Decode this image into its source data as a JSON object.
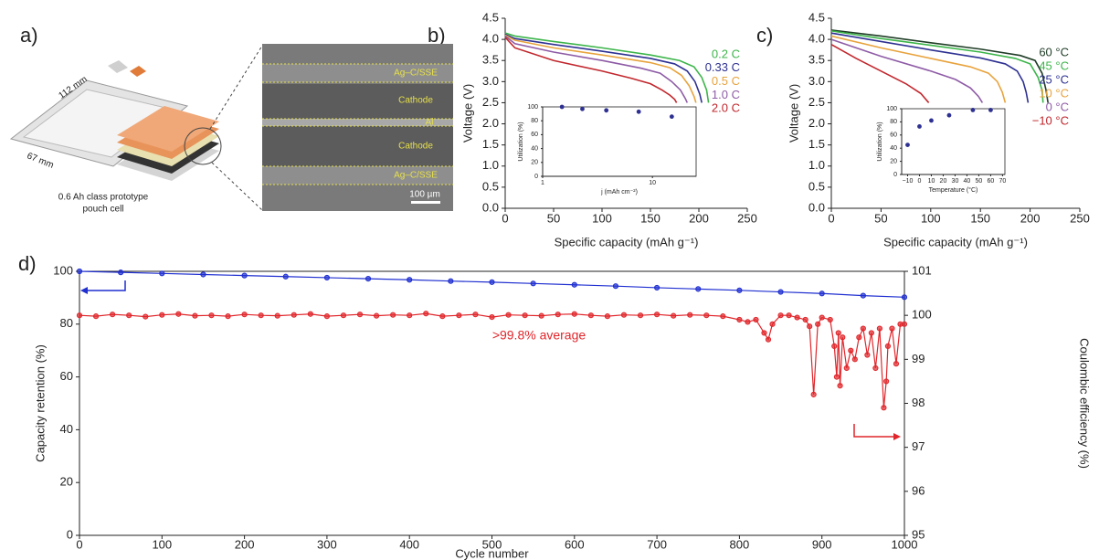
{
  "panel_labels": [
    "a)",
    "b)",
    "c)",
    "d)"
  ],
  "illustration": {
    "dimensions": [
      "112 mm",
      "67 mm"
    ],
    "caption": [
      "0.6 Ah class prototype",
      "pouch cell"
    ],
    "layers": [
      "Ag–C/SSE",
      "Cathode",
      "Al",
      "Cathode",
      "Ag–C/SSE"
    ],
    "scale_bar": "100 µm"
  },
  "chart_data": [
    {
      "type": "line",
      "xlabel": "Specific capacity (mAh g⁻¹)",
      "ylabel": "Voltage (V)",
      "xlim": [
        0,
        250
      ],
      "xticks": [
        0,
        50,
        100,
        150,
        200,
        250
      ],
      "ylim": [
        0,
        4.5
      ],
      "yticks": [
        {
          "value": 0,
          "label": "0.0"
        },
        0.5,
        {
          "value": 1,
          "label": "1.0"
        },
        1.5,
        {
          "value": 2,
          "label": "2.0"
        },
        2.5,
        {
          "value": 3,
          "label": "3.0"
        },
        3.5,
        {
          "value": 4,
          "label": "4.0"
        },
        4.5
      ],
      "series": [
        {
          "name": "0.2 C",
          "color": "#3cb54a",
          "x": [
            0,
            10,
            50,
            100,
            150,
            180,
            195,
            203,
            208,
            210
          ],
          "values": [
            4.15,
            4.08,
            3.95,
            3.8,
            3.63,
            3.5,
            3.35,
            3.1,
            2.8,
            2.5
          ]
        },
        {
          "name": "0.33 C",
          "color": "#2e3192",
          "x": [
            0,
            10,
            50,
            100,
            150,
            175,
            188,
            196,
            201,
            203
          ],
          "values": [
            4.12,
            4.02,
            3.88,
            3.72,
            3.55,
            3.42,
            3.25,
            3.0,
            2.7,
            2.5
          ]
        },
        {
          "name": "0.5 C",
          "color": "#e8a33d",
          "x": [
            0,
            10,
            50,
            100,
            150,
            170,
            182,
            190,
            195,
            197
          ],
          "values": [
            4.1,
            3.98,
            3.8,
            3.63,
            3.45,
            3.33,
            3.15,
            2.9,
            2.65,
            2.5
          ]
        },
        {
          "name": "1.0 C",
          "color": "#8e5ba6",
          "x": [
            0,
            10,
            50,
            100,
            140,
            160,
            172,
            181,
            186,
            188
          ],
          "values": [
            4.08,
            3.9,
            3.7,
            3.5,
            3.32,
            3.2,
            3.0,
            2.8,
            2.6,
            2.5
          ]
        },
        {
          "name": "2.0 C",
          "color": "#c1272d",
          "x": [
            0,
            10,
            50,
            100,
            130,
            150,
            162,
            170,
            175,
            177
          ],
          "values": [
            4.05,
            3.8,
            3.5,
            3.25,
            3.08,
            2.95,
            2.8,
            2.68,
            2.58,
            2.5
          ]
        }
      ]
    },
    {
      "type": "scatter",
      "xlabel": "j (mAh cm⁻²)",
      "ylabel": "Utilization (%)",
      "log_x": true,
      "xlim": [
        1,
        25
      ],
      "xticks": [
        1,
        10
      ],
      "ylim": [
        0,
        100
      ],
      "yticks": [
        0,
        20,
        40,
        60,
        80,
        100
      ],
      "color": "#2e3192",
      "x": [
        1.5,
        2.3,
        3.8,
        7.5,
        15
      ],
      "values": [
        100,
        97,
        95,
        93,
        86
      ]
    },
    {
      "type": "line",
      "xlabel": "Specific capacity (mAh g⁻¹)",
      "ylabel": "Voltage (V)",
      "xlim": [
        0,
        250
      ],
      "xticks": [
        0,
        50,
        100,
        150,
        200,
        250
      ],
      "ylim": [
        0,
        4.5
      ],
      "yticks": [
        {
          "value": 0,
          "label": "0.0"
        },
        0.5,
        {
          "value": 1,
          "label": "1.0"
        },
        1.5,
        {
          "value": 2,
          "label": "2.0"
        },
        2.5,
        {
          "value": 3,
          "label": "3.0"
        },
        3.5,
        {
          "value": 4,
          "label": "4.0"
        },
        4.5
      ],
      "series": [
        {
          "name": "60 °C",
          "color": "#1f3d26",
          "x": [
            0,
            50,
            100,
            150,
            190,
            205,
            212,
            216,
            218
          ],
          "values": [
            4.22,
            4.08,
            3.92,
            3.77,
            3.62,
            3.5,
            3.2,
            2.8,
            2.5
          ]
        },
        {
          "name": "45 °C",
          "color": "#3cb54a",
          "x": [
            0,
            50,
            100,
            150,
            185,
            200,
            208,
            212,
            213
          ],
          "values": [
            4.2,
            4.02,
            3.86,
            3.7,
            3.55,
            3.42,
            3.1,
            2.8,
            2.5
          ]
        },
        {
          "name": "25 °C",
          "color": "#2e3192",
          "x": [
            0,
            50,
            100,
            150,
            175,
            187,
            193,
            196,
            198
          ],
          "values": [
            4.15,
            3.95,
            3.75,
            3.56,
            3.42,
            3.25,
            3.0,
            2.75,
            2.5
          ]
        },
        {
          "name": "10 °C",
          "color": "#e8a33d",
          "x": [
            0,
            50,
            100,
            140,
            158,
            167,
            172,
            175
          ],
          "values": [
            4.08,
            3.8,
            3.55,
            3.35,
            3.2,
            3.0,
            2.75,
            2.5
          ]
        },
        {
          "name": "0 °C",
          "color": "#8e5ba6",
          "x": [
            0,
            25,
            50,
            100,
            125,
            140,
            148,
            152
          ],
          "values": [
            4.0,
            3.8,
            3.6,
            3.25,
            3.05,
            2.85,
            2.65,
            2.5
          ]
        },
        {
          "name": "−10 °C",
          "color": "#c1272d",
          "x": [
            0,
            25,
            50,
            75,
            90,
            98
          ],
          "values": [
            3.88,
            3.55,
            3.25,
            2.95,
            2.72,
            2.5
          ]
        }
      ]
    },
    {
      "type": "scatter",
      "xlabel": "Temperature (°C)",
      "ylabel": "Utilization (%)",
      "xlim": [
        -15,
        72
      ],
      "xticks": [
        {
          "value": -10,
          "label": "−10"
        },
        0,
        10,
        20,
        30,
        40,
        50,
        60,
        70
      ],
      "ylim": [
        0,
        100
      ],
      "yticks": [
        0,
        20,
        40,
        60,
        80,
        100
      ],
      "color": "#2e3192",
      "x": [
        -10,
        0,
        10,
        25,
        45,
        60
      ],
      "values": [
        45,
        73,
        82,
        90,
        98,
        98
      ]
    },
    {
      "type": "line",
      "xlabel": "Cycle number",
      "ylabel": "Capacity retention (%)",
      "y2label": "Coulombic efficiency (%)",
      "xlim": [
        0,
        1000
      ],
      "xticks": [
        0,
        100,
        200,
        300,
        400,
        500,
        600,
        700,
        800,
        900,
        1000
      ],
      "ylim": [
        0,
        100
      ],
      "yticks": [
        0,
        20,
        40,
        60,
        80,
        100
      ],
      "y2lim": [
        95,
        101
      ],
      "y2ticks": [
        95,
        96,
        97,
        98,
        99,
        100,
        101
      ],
      "annotation": {
        "text": ">99.8% average",
        "color": "#e0262b"
      },
      "series": [
        {
          "color": "#1f2fd0",
          "markers": true,
          "x": [
            0,
            50,
            100,
            150,
            200,
            250,
            300,
            350,
            400,
            450,
            500,
            550,
            600,
            650,
            700,
            750,
            800,
            850,
            900,
            950,
            1000
          ],
          "values": [
            100,
            99.6,
            99.2,
            98.8,
            98.4,
            98,
            97.6,
            97.2,
            96.8,
            96.3,
            95.9,
            95.4,
            94.9,
            94.4,
            93.8,
            93.3,
            92.8,
            92.2,
            91.6,
            90.8,
            90.2
          ]
        },
        {
          "color": "#e0262b",
          "markers": true,
          "axis": "y2",
          "x": [
            0,
            20,
            40,
            60,
            80,
            100,
            120,
            140,
            160,
            180,
            200,
            220,
            240,
            260,
            280,
            300,
            320,
            340,
            360,
            380,
            400,
            420,
            440,
            460,
            480,
            500,
            520,
            540,
            560,
            580,
            600,
            620,
            640,
            660,
            680,
            700,
            720,
            740,
            760,
            780,
            800,
            810,
            820,
            830,
            835,
            840,
            850,
            860,
            870,
            880,
            885,
            890,
            895,
            900,
            910,
            915,
            918,
            920,
            922,
            925,
            930,
            935,
            940,
            945,
            950,
            955,
            960,
            965,
            970,
            975,
            978,
            980,
            985,
            990,
            995,
            1000
          ],
          "values": [
            100.0,
            99.98,
            100.02,
            100.0,
            99.97,
            100.01,
            100.03,
            99.99,
            100.0,
            99.98,
            100.02,
            100.0,
            99.99,
            100.01,
            100.03,
            99.98,
            100.0,
            100.02,
            99.99,
            100.01,
            100.0,
            100.04,
            99.98,
            100.0,
            100.02,
            99.96,
            100.01,
            100.0,
            99.99,
            100.02,
            100.03,
            100.0,
            99.98,
            100.01,
            100.0,
            100.02,
            99.99,
            100.01,
            100.0,
            99.98,
            99.9,
            99.85,
            99.9,
            99.6,
            99.45,
            99.8,
            100.0,
            100.0,
            99.95,
            99.9,
            99.75,
            98.2,
            99.8,
            99.95,
            99.9,
            99.3,
            98.6,
            99.6,
            98.4,
            99.5,
            98.8,
            99.2,
            99.0,
            99.5,
            99.7,
            99.1,
            99.6,
            98.8,
            99.7,
            97.9,
            98.5,
            99.3,
            99.7,
            98.9,
            99.8,
            99.8
          ]
        }
      ]
    }
  ]
}
